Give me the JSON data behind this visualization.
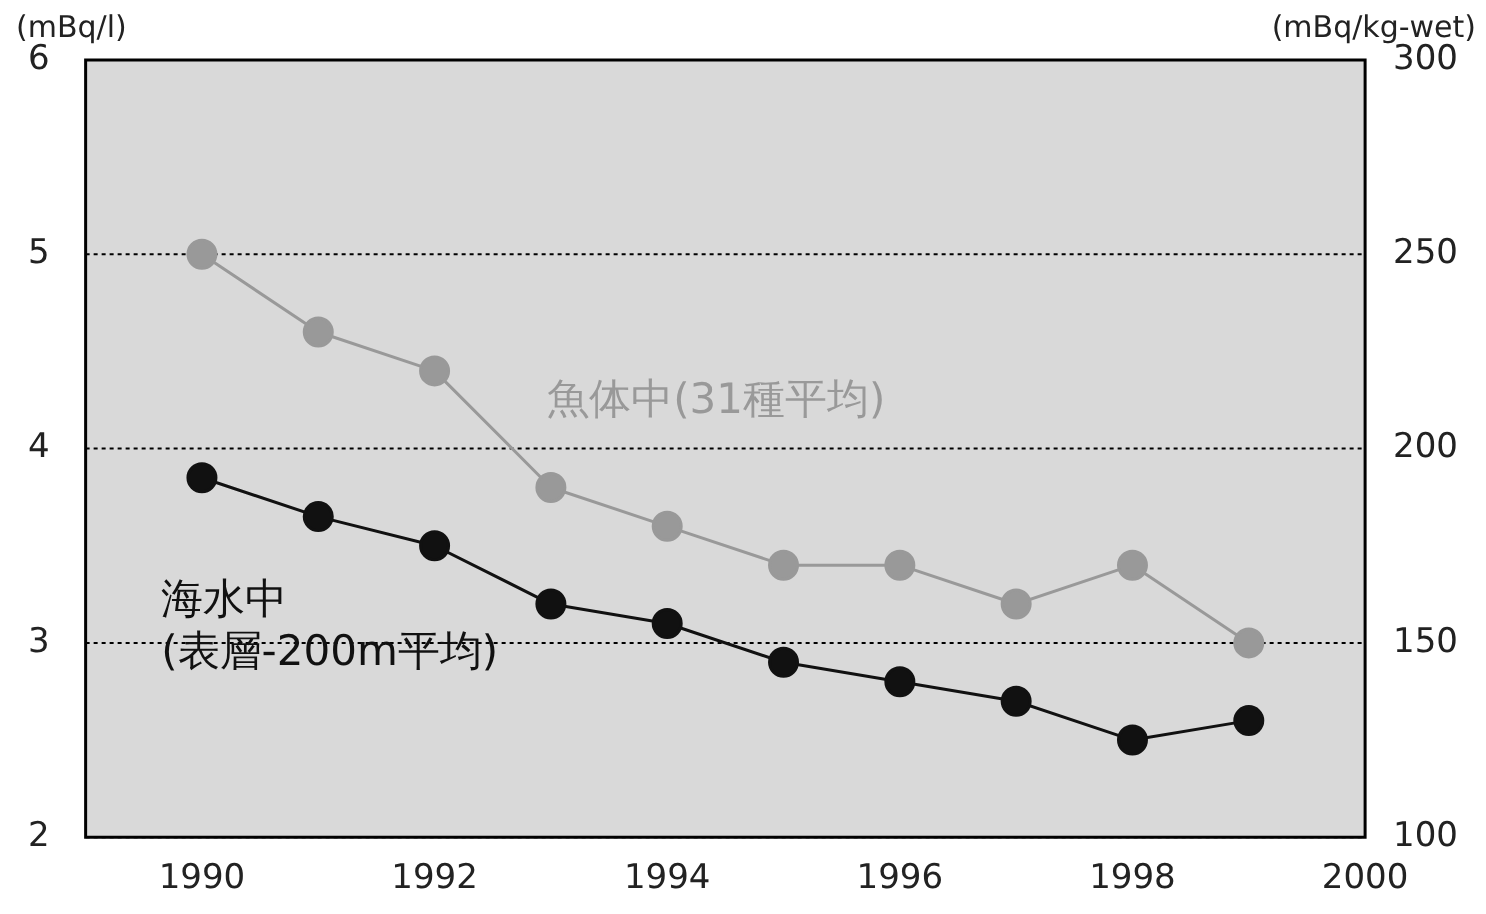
{
  "chart_data": {
    "type": "line",
    "ylabel": "(mBq/l)",
    "y2label": "(mBq/kg-wet)",
    "x": [
      1990,
      1991,
      1992,
      1993,
      1994,
      1995,
      1996,
      1997,
      1998,
      1999
    ],
    "xlim": [
      1989,
      2000
    ],
    "xticks": [
      1990,
      1992,
      1994,
      1996,
      1998,
      2000
    ],
    "ylim": [
      2,
      6
    ],
    "yticks": [
      2,
      3,
      4,
      5,
      6
    ],
    "y2lim": [
      100,
      300
    ],
    "y2ticks": [
      100,
      150,
      200,
      250,
      300
    ],
    "grid": "y",
    "legend": false,
    "marker": "circle",
    "line_style": "solid",
    "series": [
      {
        "name": "魚体中(31種平均)",
        "color": "#999999",
        "axis": "y2",
        "values": [
          250,
          230,
          220,
          190,
          180,
          170,
          170,
          160,
          170,
          150
        ]
      },
      {
        "name": "海水中\n(表層-200m平均)",
        "color": "#111111",
        "values": [
          3.85,
          3.65,
          3.5,
          3.2,
          3.1,
          2.9,
          2.8,
          2.7,
          2.5,
          2.6
        ]
      }
    ]
  }
}
